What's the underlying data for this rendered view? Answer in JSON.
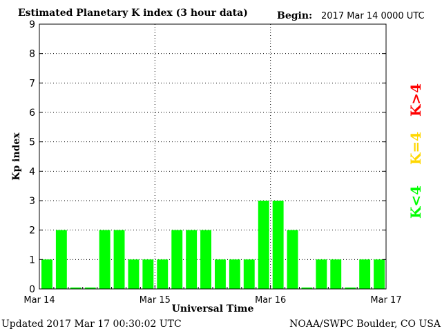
{
  "chart_data": {
    "type": "bar",
    "title": "Estimated Planetary K index (3 hour data)",
    "begin_label": "Begin:",
    "begin_value": "2017 Mar 14 0000 UTC",
    "xlabel": "Universal Time",
    "ylabel": "Kp index",
    "ylim": [
      0,
      9
    ],
    "yticks": [
      "0",
      "1",
      "2",
      "3",
      "4",
      "5",
      "6",
      "7",
      "8",
      "9"
    ],
    "xticks": [
      "Mar 14",
      "Mar 15",
      "Mar 16",
      "Mar 17"
    ],
    "grid": true,
    "values": [
      1,
      2,
      0.05,
      0.05,
      2,
      2,
      1,
      1,
      1,
      2,
      2,
      2,
      1,
      1,
      1,
      3,
      3,
      2,
      0.05,
      1,
      1,
      0.05,
      1,
      1
    ],
    "bar_color": "#00ff00",
    "legend": {
      "placement": "right",
      "items": [
        {
          "label": "K>4",
          "color": "#ff0000"
        },
        {
          "label": "K=4",
          "color": "#ffd700"
        },
        {
          "label": "K<4",
          "color": "#00ff00"
        }
      ]
    }
  },
  "footer": {
    "updated": "Updated 2017 Mar 17 00:30:02 UTC",
    "source": "NOAA/SWPC Boulder, CO USA"
  }
}
